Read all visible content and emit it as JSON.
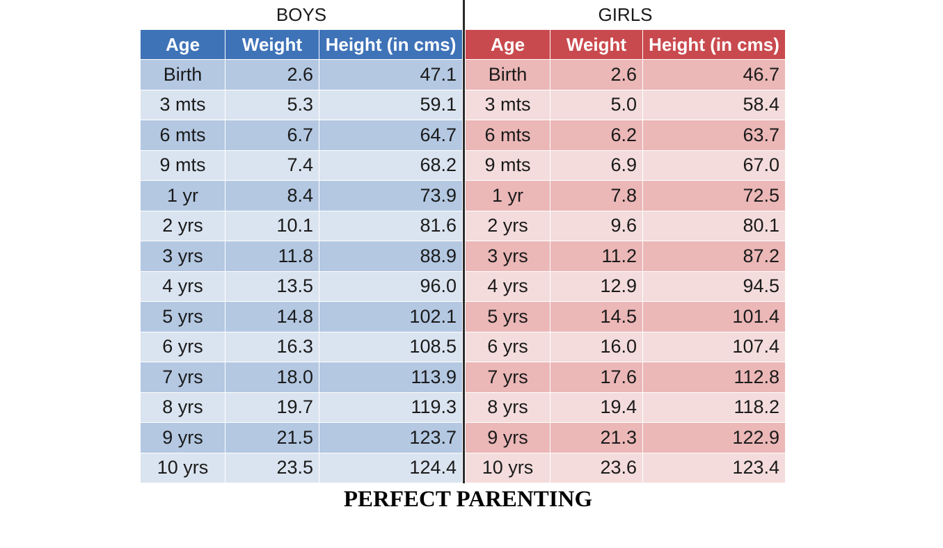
{
  "boys": {
    "title": "BOYS",
    "headers": [
      "Age",
      "Weight",
      "Height (in cms)"
    ],
    "rows": [
      [
        "Birth",
        "2.6",
        "47.1"
      ],
      [
        "3 mts",
        "5.3",
        "59.1"
      ],
      [
        "6 mts",
        "6.7",
        "64.7"
      ],
      [
        "9 mts",
        "7.4",
        "68.2"
      ],
      [
        "1 yr",
        "8.4",
        "73.9"
      ],
      [
        "2 yrs",
        "10.1",
        "81.6"
      ],
      [
        "3 yrs",
        "11.8",
        "88.9"
      ],
      [
        "4 yrs",
        "13.5",
        "96.0"
      ],
      [
        "5 yrs",
        "14.8",
        "102.1"
      ],
      [
        "6 yrs",
        "16.3",
        "108.5"
      ],
      [
        "7 yrs",
        "18.0",
        "113.9"
      ],
      [
        "8 yrs",
        "19.7",
        "119.3"
      ],
      [
        "9 yrs",
        "21.5",
        "123.7"
      ],
      [
        "10 yrs",
        "23.5",
        "124.4"
      ]
    ]
  },
  "girls": {
    "title": "GIRLS",
    "headers": [
      "Age",
      "Weight",
      "Height (in cms)"
    ],
    "rows": [
      [
        "Birth",
        "2.6",
        "46.7"
      ],
      [
        "3 mts",
        "5.0",
        "58.4"
      ],
      [
        "6 mts",
        "6.2",
        "63.7"
      ],
      [
        "9 mts",
        "6.9",
        "67.0"
      ],
      [
        "1 yr",
        "7.8",
        "72.5"
      ],
      [
        "2 yrs",
        "9.6",
        "80.1"
      ],
      [
        "3 yrs",
        "11.2",
        "87.2"
      ],
      [
        "4 yrs",
        "12.9",
        "94.5"
      ],
      [
        "5 yrs",
        "14.5",
        "101.4"
      ],
      [
        "6 yrs",
        "16.0",
        "107.4"
      ],
      [
        "7 yrs",
        "17.6",
        "112.8"
      ],
      [
        "8 yrs",
        "19.4",
        "118.2"
      ],
      [
        "9 yrs",
        "21.3",
        "122.9"
      ],
      [
        "10 yrs",
        "23.6",
        "123.4"
      ]
    ]
  },
  "caption": "PERFECT PARENTING",
  "colors": {
    "boys_header": "#3f73b8",
    "girls_header": "#c94a4e"
  }
}
